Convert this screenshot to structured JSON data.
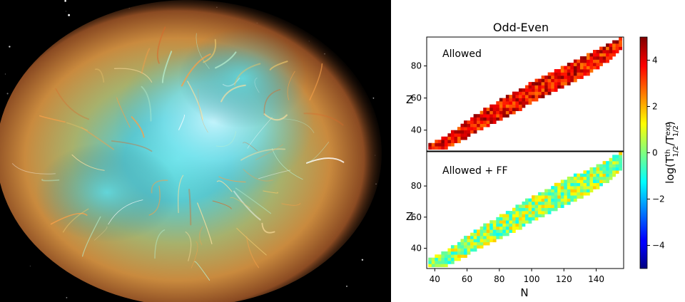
{
  "chart_data": {
    "type": "heatmap",
    "title": "Odd-Even",
    "xlabel": "N",
    "ylabel": "Z",
    "xlim": [
      35,
      157
    ],
    "xticks": [
      40,
      60,
      80,
      100,
      120,
      140
    ],
    "yticks": [
      40,
      60,
      80
    ],
    "colorbar": {
      "label_main": "log(T",
      "label_sub1": "1/2",
      "label_sup1": "th",
      "label_mid": "/T",
      "label_sub2": "1/2",
      "label_sup2": "exp",
      "label_end": ")",
      "range": [
        -5,
        5
      ],
      "ticks": [
        4,
        2,
        0,
        -2,
        -4
      ],
      "tick_labels": [
        "4",
        "2",
        "0",
        "−2",
        "−4"
      ],
      "colormap": "jet"
    },
    "panels": [
      {
        "label": "Allowed",
        "ylim": [
          27,
          98
        ],
        "color_value_range": [
          2.6,
          5
        ],
        "band": [
          [
            36,
            28,
            30
          ],
          [
            48,
            30,
            37
          ],
          [
            62,
            38,
            47
          ],
          [
            78,
            46,
            57
          ],
          [
            96,
            56,
            67
          ],
          [
            112,
            64,
            75
          ],
          [
            128,
            72,
            83
          ],
          [
            144,
            82,
            91
          ],
          [
            156,
            92,
            98
          ]
        ]
      },
      {
        "label": "Allowed + FF",
        "ylim": [
          27,
          102
        ],
        "color_value_range": [
          -1.2,
          1.8
        ],
        "band": [
          [
            36,
            28,
            32
          ],
          [
            48,
            30,
            39
          ],
          [
            62,
            38,
            49
          ],
          [
            78,
            46,
            59
          ],
          [
            96,
            56,
            70
          ],
          [
            112,
            64,
            79
          ],
          [
            128,
            72,
            87
          ],
          [
            144,
            82,
            94
          ],
          [
            156,
            92,
            102
          ]
        ]
      }
    ]
  }
}
